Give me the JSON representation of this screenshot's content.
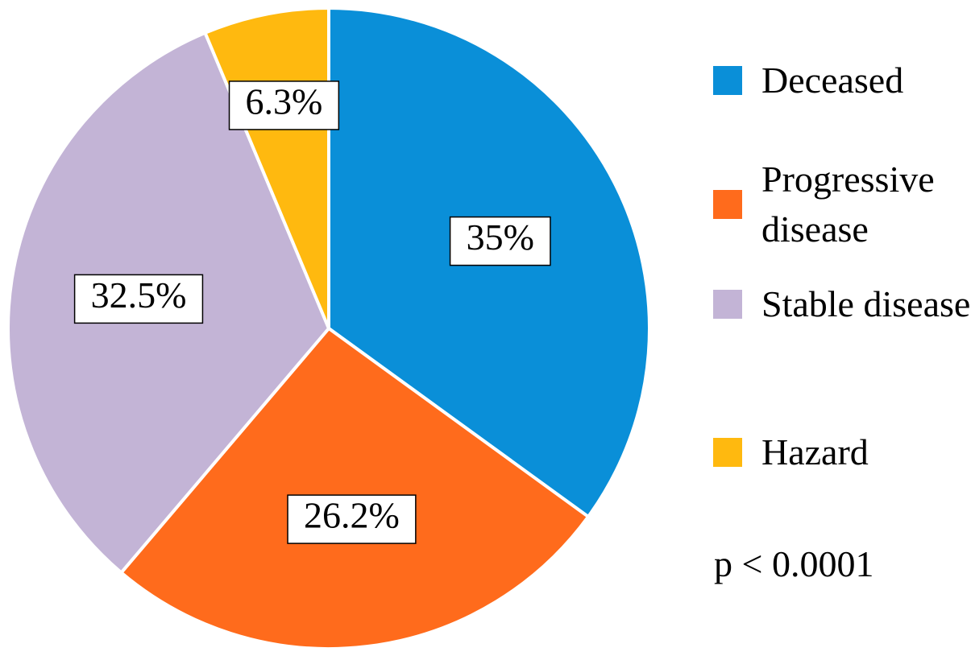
{
  "chart_data": {
    "type": "pie",
    "categories": [
      "Deceased",
      "Progressive disease",
      "Stable disease",
      "Hazard"
    ],
    "values": [
      35,
      26.2,
      32.5,
      6.3
    ],
    "value_labels": [
      "35%",
      "26.2%",
      "32.5%",
      "6.3%"
    ],
    "colors": [
      "#0a8fd8",
      "#ff6b1c",
      "#c3b4d6",
      "#ffb90f"
    ],
    "legend": "right",
    "annotation": "p < 0.0001"
  }
}
